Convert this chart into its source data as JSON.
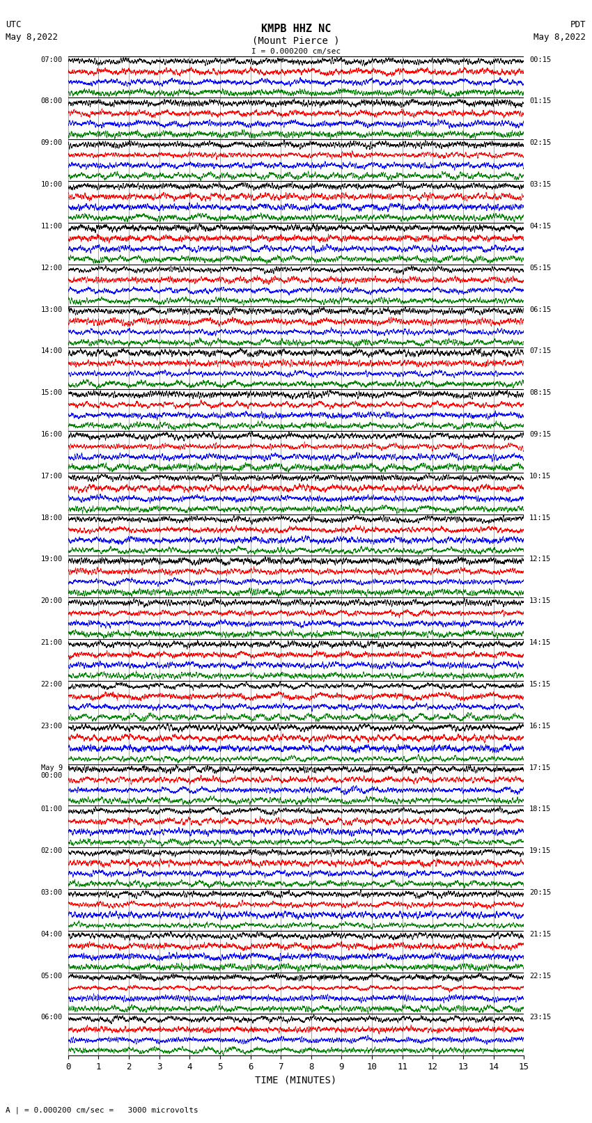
{
  "title_line1": "KMPB HHZ NC",
  "title_line2": "(Mount Pierce )",
  "title_line3": "I = 0.000200 cm/sec",
  "label_left_line1": "UTC",
  "label_left_line2": "May 8,2022",
  "label_right_line1": "PDT",
  "label_right_line2": "May 8,2022",
  "bottom_label": "A | = 0.000200 cm/sec =   3000 microvolts",
  "xlabel": "TIME (MINUTES)",
  "xticks": [
    0,
    1,
    2,
    3,
    4,
    5,
    6,
    7,
    8,
    9,
    10,
    11,
    12,
    13,
    14,
    15
  ],
  "left_times_utc": [
    "07:00",
    "08:00",
    "09:00",
    "10:00",
    "11:00",
    "12:00",
    "13:00",
    "14:00",
    "15:00",
    "16:00",
    "17:00",
    "18:00",
    "19:00",
    "20:00",
    "21:00",
    "22:00",
    "23:00",
    "May 9\n00:00",
    "01:00",
    "02:00",
    "03:00",
    "04:00",
    "05:00",
    "06:00"
  ],
  "right_times_pdt": [
    "00:15",
    "01:15",
    "02:15",
    "03:15",
    "04:15",
    "05:15",
    "06:15",
    "07:15",
    "08:15",
    "09:15",
    "10:15",
    "11:15",
    "12:15",
    "13:15",
    "14:15",
    "15:15",
    "16:15",
    "17:15",
    "18:15",
    "19:15",
    "20:15",
    "21:15",
    "22:15",
    "23:15"
  ],
  "num_rows": 24,
  "minutes_per_row": 15,
  "colors_cycle": [
    "black",
    "red",
    "blue",
    "green"
  ],
  "background_color": "white",
  "fig_width": 8.5,
  "fig_height": 16.13,
  "dpi": 100
}
